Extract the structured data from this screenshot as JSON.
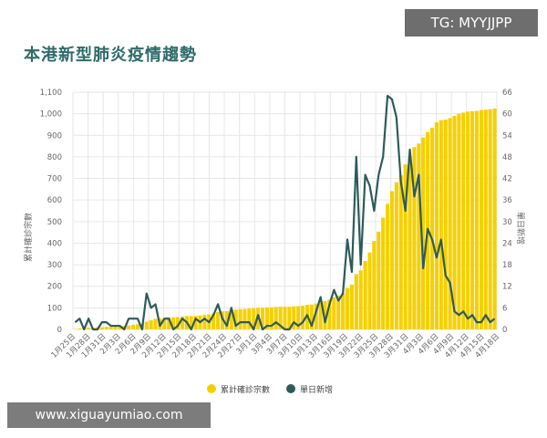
{
  "title": "本港新型肺炎疫情趨勢",
  "watermark_top": "TG: MYYJJPP",
  "watermark_bottom": "www.xiguayumiao.com",
  "colors": {
    "bar": "#f5d000",
    "line": "#2e5a5a",
    "grid": "#e6e6e6",
    "title": "#2f6b6a"
  },
  "chart_data": {
    "type": "bar",
    "ylabel": "累計確診宗數",
    "y2label": "單日新增",
    "ylim": [
      0,
      1100
    ],
    "y2lim": [
      0,
      66
    ],
    "yticks": [
      0,
      100,
      200,
      300,
      400,
      500,
      600,
      700,
      800,
      900,
      1000,
      1100
    ],
    "ytick_labels": [
      "0",
      "100",
      "200",
      "300",
      "400",
      "500",
      "600",
      "700",
      "800",
      "900",
      "1,000",
      "1,100"
    ],
    "y2ticks": [
      0,
      6,
      12,
      18,
      24,
      30,
      36,
      42,
      48,
      54,
      60,
      66
    ],
    "xtick_labels": [
      "1月25日",
      "1月28日",
      "1月31日",
      "2月3日",
      "2月6日",
      "2月9日",
      "2月12日",
      "2月15日",
      "2月18日",
      "2月21日",
      "2月24日",
      "2月27日",
      "3月1日",
      "3月4日",
      "3月7日",
      "3月10日",
      "3月13日",
      "3月16日",
      "3月19日",
      "3月22日",
      "3月25日",
      "3月28日",
      "3月31日",
      "4月3日",
      "4月6日",
      "4月9日",
      "4月12日",
      "4月15日",
      "4月18日"
    ],
    "grid": true,
    "legend_position": "bottom",
    "series": [
      {
        "name": "累計確診宗數",
        "type": "bar",
        "axis": "left",
        "values": [
          2,
          5,
          5,
          8,
          8,
          10,
          10,
          12,
          13,
          15,
          15,
          17,
          18,
          21,
          24,
          26,
          36,
          42,
          49,
          50,
          53,
          56,
          56,
          57,
          60,
          62,
          62,
          63,
          65,
          68,
          70,
          74,
          81,
          84,
          85,
          91,
          92,
          94,
          95,
          97,
          98,
          100,
          100,
          101,
          102,
          104,
          105,
          105,
          105,
          107,
          108,
          110,
          114,
          115,
          120,
          129,
          131,
          138,
          149,
          157,
          167,
          192,
          208,
          256,
          274,
          317,
          357,
          410,
          453,
          518,
          582,
          641,
          682,
          715,
          765,
          802,
          845,
          862,
          890,
          915,
          935,
          960,
          970,
          973,
          980,
          990,
          1000,
          1005,
          1010,
          1012,
          1013,
          1017,
          1019,
          1021,
          1024
        ]
      },
      {
        "name": "單日新增",
        "type": "line",
        "axis": "right",
        "values": [
          2,
          3,
          0,
          3,
          0,
          0,
          2,
          2,
          1,
          1,
          1,
          0,
          3,
          3,
          3,
          0,
          10,
          6,
          7,
          1,
          3,
          3,
          0,
          1,
          3,
          2,
          0,
          3,
          2,
          3,
          2,
          4,
          7,
          3,
          1,
          6,
          1,
          2,
          2,
          2,
          0,
          4,
          0,
          1,
          1,
          2,
          1,
          0,
          0,
          2,
          1,
          2,
          4,
          1,
          5,
          9,
          2,
          7,
          11,
          8,
          10,
          25,
          16,
          48,
          18,
          43,
          40,
          33,
          43,
          48,
          65,
          64,
          59,
          41,
          33,
          50,
          37,
          43,
          17,
          28,
          25,
          20,
          25,
          15,
          13,
          5,
          4,
          5,
          3,
          4,
          2,
          2,
          4,
          2,
          3
        ]
      }
    ]
  }
}
